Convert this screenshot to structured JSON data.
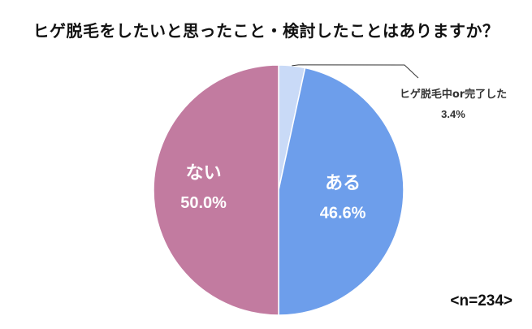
{
  "title": "ヒゲ脱毛をしたいと思ったこと・検討したことはありますか？",
  "sample_note": "<n=234>",
  "chart_data": {
    "type": "pie",
    "title": "ヒゲ脱毛をしたいと思ったこと・検討したことはありますか？",
    "slices": [
      {
        "label": "ヒゲ脱毛中or完了した",
        "value": 3.4,
        "value_label": "3.4%",
        "color": "#c9daf7",
        "label_position": "outside-callout",
        "label_color": "#333333"
      },
      {
        "label": "ある",
        "value": 46.6,
        "value_label": "46.6%",
        "color": "#6d9eeb",
        "label_position": "inside",
        "label_color": "#ffffff"
      },
      {
        "label": "ない",
        "value": 50.0,
        "value_label": "50.0%",
        "color": "#c27ba0",
        "label_position": "inside",
        "label_color": "#ffffff"
      }
    ],
    "start": "12 o'clock",
    "direction": "clockwise",
    "legend": "none"
  }
}
